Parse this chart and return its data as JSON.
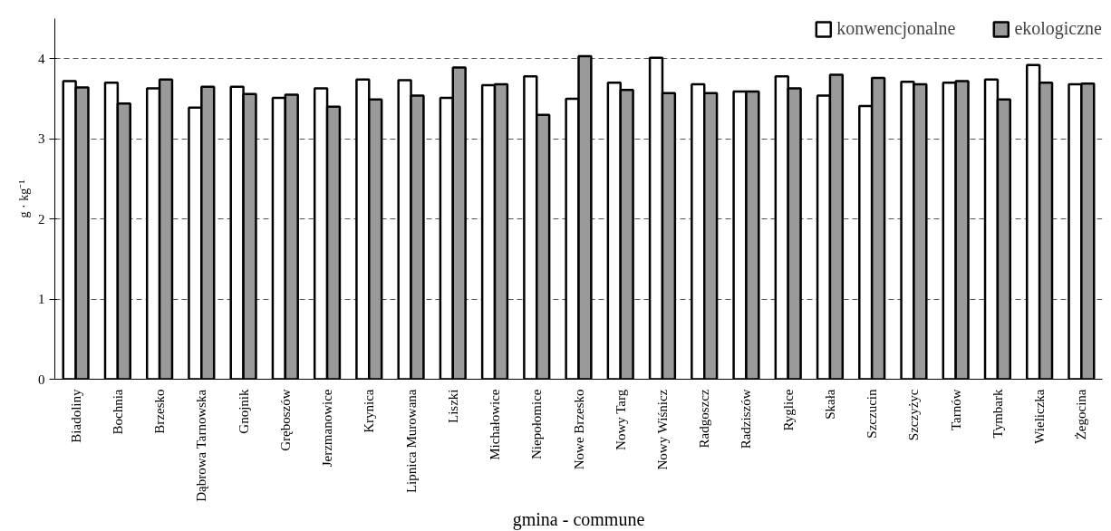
{
  "chart_data": {
    "type": "bar",
    "xlabel": "gmina - commune",
    "ylabel": "g · kg⁻¹",
    "categories": [
      "Biadoliny",
      "Bochnia",
      "Brzesko",
      "Dąbrowa Tarnowska",
      "Gnojnik",
      "Gręboszów",
      "Jerzmanowice",
      "Krynica",
      "Lipnica Murowana",
      "Liszki",
      "Michałowice",
      "Niepołomice",
      "Nowe Brzesko",
      "Nowy Targ",
      "Nowy Wiśnicz",
      "Radgoszcz",
      "Radziszów",
      "Ryglice",
      "Skała",
      "Szczucin",
      "Szczyżyc",
      "Tarnów",
      "Tymbark",
      "Wieliczka",
      "Żegocina"
    ],
    "series": [
      {
        "name": "konwencjonalne",
        "color": "#ffffff",
        "values": [
          3.72,
          3.7,
          3.63,
          3.39,
          3.65,
          3.51,
          3.63,
          3.74,
          3.73,
          3.51,
          3.67,
          3.78,
          3.5,
          3.7,
          4.01,
          3.68,
          3.59,
          3.78,
          3.54,
          3.41,
          3.71,
          3.7,
          3.74,
          3.92,
          3.68
        ]
      },
      {
        "name": "ekologiczne",
        "color": "#9a9a9a",
        "values": [
          3.64,
          3.44,
          3.74,
          3.65,
          3.56,
          3.55,
          3.4,
          3.49,
          3.54,
          3.89,
          3.68,
          3.3,
          4.03,
          3.61,
          3.57,
          3.57,
          3.59,
          3.63,
          3.8,
          3.76,
          3.68,
          3.72,
          3.49,
          3.7,
          3.69
        ]
      }
    ],
    "ylim": [
      0,
      4.5
    ],
    "yticks": [
      0,
      1,
      2,
      3,
      4
    ],
    "grid": "y",
    "legend": "top right"
  }
}
